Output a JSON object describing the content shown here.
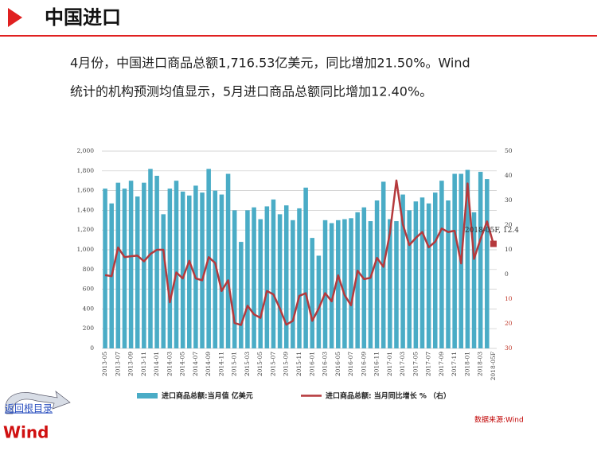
{
  "header": {
    "title": "中国进口"
  },
  "paragraph": [
    "4月份，中国进口商品总额1,716.53亿美元，同比增加21.50%。Wind",
    "统计的机构预测均值显示，5月进口商品总额同比增加12.40%。"
  ],
  "nav": {
    "back_link": "返回根目录",
    "logo": "Wind"
  },
  "source": "数据来源:Wind",
  "chart_data": {
    "type": "bar_line",
    "categories": [
      "2013-05",
      null,
      "2013-07",
      null,
      "2013-09",
      null,
      "2013-11",
      null,
      "2014-01",
      null,
      "2014-03",
      null,
      "2014-05",
      null,
      "2014-07",
      null,
      "2014-09",
      null,
      "2014-11",
      null,
      "2015-01",
      null,
      "2015-03",
      null,
      "2015-05",
      null,
      "2015-07",
      null,
      "2015-09",
      null,
      "2015-11",
      null,
      "2016-01",
      null,
      "2016-03",
      null,
      "2016-05",
      null,
      "2016-07",
      null,
      "2016-09",
      null,
      "2016-11",
      null,
      "2017-01",
      null,
      "2017-03",
      null,
      "2017-05",
      null,
      "2017-07",
      null,
      "2017-09",
      null,
      "2017-11",
      null,
      "2018-01",
      null,
      "2018-03",
      null,
      "2018-05F"
    ],
    "series": [
      {
        "name": "进口商品总额:当月值 亿美元",
        "type": "bar",
        "color": "#4aacc6",
        "values": [
          1620,
          1470,
          1680,
          1620,
          1700,
          1540,
          1680,
          1820,
          1750,
          1360,
          1620,
          1700,
          1590,
          1550,
          1650,
          1580,
          1820,
          1600,
          1560,
          1770,
          1400,
          1080,
          1400,
          1430,
          1310,
          1440,
          1510,
          1360,
          1450,
          1300,
          1420,
          1630,
          1120,
          940,
          1300,
          1270,
          1300,
          1310,
          1320,
          1380,
          1430,
          1290,
          1500,
          1690,
          1310,
          1290,
          1560,
          1400,
          1490,
          1530,
          1470,
          1580,
          1700,
          1500,
          1770,
          1770,
          1810,
          1380,
          1790,
          1717,
          null
        ]
      },
      {
        "name": "进口商品总额: 当月同比增长 % （右）",
        "type": "line",
        "axis": "y2",
        "color": "#b5393c",
        "values": [
          -0.3,
          -0.7,
          10.9,
          7.0,
          7.4,
          7.6,
          5.3,
          8.3,
          10,
          10,
          -11.3,
          0.8,
          -1.6,
          5.5,
          -1.6,
          -2.4,
          7.0,
          4.6,
          -6.7,
          -2.4,
          -19.7,
          -20.5,
          -12.7,
          -16.2,
          -17.6,
          -6.7,
          -8.1,
          -13.8,
          -20.4,
          -18.8,
          -8.7,
          -7.6,
          -18.8,
          -13.8,
          -7.6,
          -10.9,
          -0.4,
          -8.4,
          -12.5,
          1.5,
          -1.9,
          -1.4,
          6.7,
          3.1,
          16.7,
          38.1,
          20.3,
          11.9,
          14.8,
          17.2,
          11.0,
          13.3,
          18.6,
          17.2,
          17.7,
          4.5,
          36.9,
          6.3,
          14.4,
          21.5,
          12.4
        ]
      }
    ],
    "annotation": "2018-05F, 12.4",
    "ylim": [
      0,
      2000
    ],
    "yticks": [
      0,
      200,
      400,
      600,
      800,
      {
        "value": 1000,
        "label": "1,000"
      },
      {
        "value": 1200,
        "label": "1,200"
      },
      {
        "value": 1400,
        "label": "1,400"
      },
      {
        "value": 1600,
        "label": "1,600"
      },
      {
        "value": 1800,
        "label": "1,800"
      },
      {
        "value": 2000,
        "label": "2,000"
      }
    ],
    "y2lim": [
      -30,
      50
    ],
    "y2ticks": [
      {
        "value": -30,
        "label": "30"
      },
      {
        "value": -20,
        "label": "20"
      },
      {
        "value": -10,
        "label": "10"
      },
      0,
      10,
      20,
      30,
      40,
      50
    ],
    "y2_negative_color": "#c0392b",
    "grid": true
  }
}
